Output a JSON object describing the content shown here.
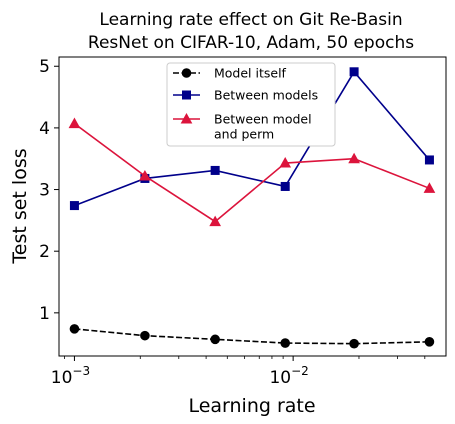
{
  "chart_data": {
    "type": "line",
    "title_line1": "Learning rate effect on Git Re-Basin",
    "title_line2": "ResNet on CIFAR-10, Adam, 50 epochs",
    "xlabel": "Learning rate",
    "ylabel": "Test set loss",
    "xscale": "log",
    "xlim": [
      0.00085,
      0.05
    ],
    "ylim": [
      0.3,
      5.15
    ],
    "yticks": [
      1,
      2,
      3,
      4,
      5
    ],
    "xticks": [
      {
        "value": 0.001,
        "base": "10",
        "exp": "−3"
      },
      {
        "value": 0.01,
        "base": "10",
        "exp": "−2"
      }
    ],
    "x": [
      0.001,
      0.0021,
      0.0044,
      0.0092,
      0.019,
      0.042
    ],
    "series": [
      {
        "name": "Model itself",
        "color": "#000000",
        "marker": "circle",
        "dashed": true,
        "values": [
          0.74,
          0.63,
          0.57,
          0.51,
          0.5,
          0.53
        ]
      },
      {
        "name": "Between models",
        "color": "#00008b",
        "marker": "square",
        "dashed": false,
        "values": [
          2.74,
          3.18,
          3.31,
          3.05,
          4.91,
          3.48
        ]
      },
      {
        "name": "Between model\nand perm",
        "color": "#dc143c",
        "marker": "triangle",
        "dashed": false,
        "values": [
          4.07,
          3.22,
          2.48,
          3.43,
          3.5,
          3.02
        ]
      }
    ],
    "legend_position": "top-center",
    "grid": false
  }
}
